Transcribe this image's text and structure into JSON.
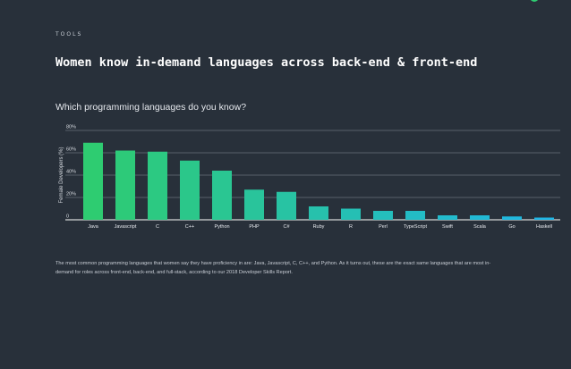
{
  "header": {
    "eyebrow": "TOOLS",
    "title": "Women know in-demand languages across back-end & front-end",
    "question": "Which programming languages do you know?"
  },
  "footnote": "The most common programming languages that women say they have proficiency in are: Java, Javascript, C, C++, and Python. As it turns out, these are the exact same languages that are most in-demand for roles across front-end, back-end, and full-stack, according to our 2018 Developer Skills Report.",
  "colors": {
    "background": "#28303a",
    "grid": "#8a919b",
    "bar_start": "#2ecc71",
    "bar_end": "#1fb6e6",
    "text": "#ffffff"
  },
  "chart_data": {
    "type": "bar",
    "categories": [
      "Java",
      "Javascript",
      "C",
      "C++",
      "Python",
      "PHP",
      "C#",
      "Ruby",
      "R",
      "Perl",
      "TypeScript",
      "Swift",
      "Scala",
      "Go",
      "Haskell"
    ],
    "values": [
      69,
      62,
      61,
      53,
      44,
      27,
      25,
      12,
      10,
      8,
      8,
      4,
      4,
      3,
      2
    ],
    "ylabel": "Female Developers (%)",
    "yticks": [
      "0",
      "20%",
      "40%",
      "60%",
      "80%"
    ],
    "ylim": [
      0,
      80
    ],
    "grid": true
  }
}
